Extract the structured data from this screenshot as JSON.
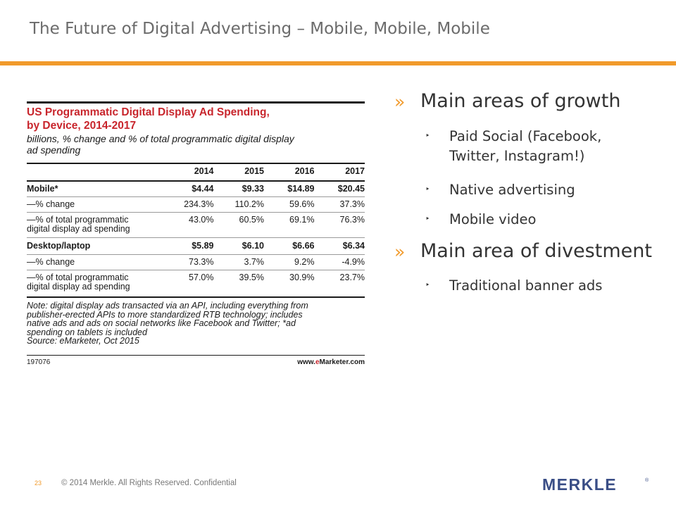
{
  "slide": {
    "title": "The Future of Digital Advertising – Mobile, Mobile, Mobile",
    "accent_color": "#f19a2b"
  },
  "figure": {
    "title_line1": "US Programmatic Digital Display Ad Spending,",
    "title_line2": "by Device, 2014-2017",
    "subtitle_line1": "billions, % change and % of total programmatic digital display",
    "subtitle_line2": "ad spending",
    "columns": [
      "2014",
      "2015",
      "2016",
      "2017"
    ],
    "rows": [
      {
        "label": "Mobile*",
        "values": [
          "$4.44",
          "$9.33",
          "$14.89",
          "$20.45"
        ]
      },
      {
        "label": "—% change",
        "values": [
          "234.3%",
          "110.2%",
          "59.6%",
          "37.3%"
        ]
      },
      {
        "label_line1": "—% of total programmatic",
        "label_line2": "digital display ad spending",
        "values": [
          "43.0%",
          "60.5%",
          "69.1%",
          "76.3%"
        ]
      },
      {
        "label": "Desktop/laptop",
        "values": [
          "$5.89",
          "$6.10",
          "$6.66",
          "$6.34"
        ]
      },
      {
        "label": "—% change",
        "values": [
          "73.3%",
          "3.7%",
          "9.2%",
          "-4.9%"
        ]
      },
      {
        "label_line1": "—% of total programmatic",
        "label_line2": "digital display ad spending",
        "values": [
          "57.0%",
          "39.5%",
          "30.9%",
          "23.7%"
        ]
      }
    ],
    "note_lines": [
      "Note: digital display ads transacted via an API, including everything from",
      "publisher-erected APIs to more standardized RTB technology; includes",
      "native ads and ads on social networks like Facebook and Twitter; *ad",
      "spending on tablets is included",
      "Source: eMarketer, Oct 2015"
    ],
    "chart_id": "197076",
    "brand_prefix": "www.",
    "brand_accent": "e",
    "brand_suffix": "Marketer.com"
  },
  "bullets": {
    "marker1": "»",
    "marker2": "‣",
    "growth_heading": "Main areas of growth",
    "growth_items": [
      {
        "line1": "Paid Social (Facebook,",
        "line2": "Twitter, Instagram!)"
      },
      {
        "line1": "Native advertising"
      },
      {
        "line1": "Mobile video"
      }
    ],
    "divest_heading": "Main area of divestment",
    "divest_items": [
      {
        "line1": "Traditional banner ads"
      }
    ]
  },
  "footer": {
    "page_number": "23",
    "copyright": "© 2014 Merkle.  All Rights Reserved. Confidential",
    "logo_text": "MERKLE",
    "logo_mark": "®",
    "logo_color": "#3a4e86"
  }
}
